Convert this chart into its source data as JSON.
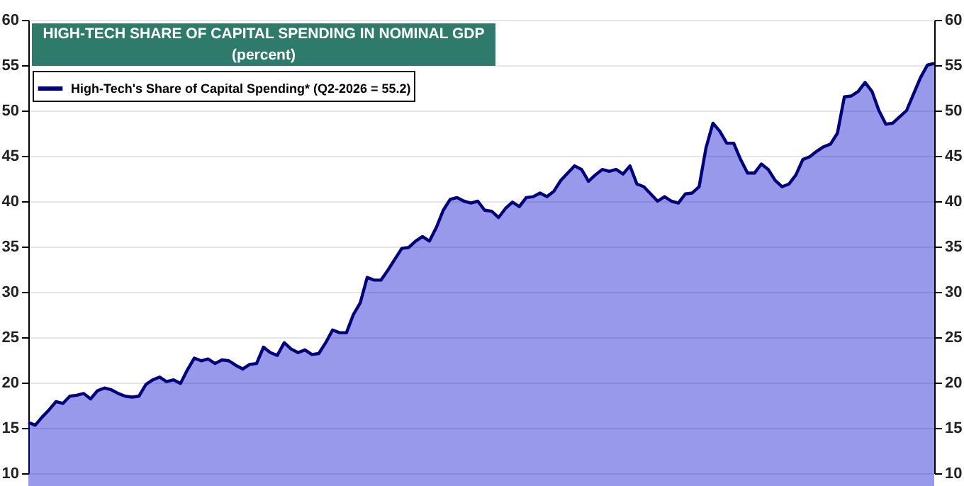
{
  "chart_data": {
    "type": "area",
    "title": "HIGH-TECH SHARE OF CAPITAL SPENDING IN NOMINAL GDP",
    "subtitle": "(percent)",
    "categories": [
      null,
      null,
      null,
      null,
      null,
      null,
      null,
      null,
      null,
      null,
      null,
      null,
      null,
      null,
      null,
      null,
      null,
      null,
      null,
      null,
      null,
      null,
      null,
      null,
      null,
      null,
      null,
      null,
      null,
      null,
      null,
      null,
      null,
      null,
      null,
      null,
      null,
      null,
      null,
      null,
      null,
      null,
      null,
      null,
      null,
      null,
      null,
      null,
      null,
      null,
      null,
      null,
      null,
      null,
      null,
      null,
      null,
      null,
      null,
      null,
      null,
      null,
      null,
      null,
      null,
      null,
      null,
      null,
      null,
      null,
      null,
      null,
      null,
      null,
      null,
      null,
      null,
      null,
      null,
      null,
      null,
      null,
      null,
      null,
      null,
      null,
      null,
      null,
      null,
      null,
      null,
      null,
      null,
      null,
      null,
      null,
      null,
      null,
      null,
      null,
      null,
      null,
      null,
      null,
      null,
      null,
      null,
      null,
      null,
      null,
      null,
      null,
      null,
      null,
      null,
      null,
      null,
      null,
      null,
      null,
      null,
      null,
      null,
      null,
      null,
      null,
      null,
      null,
      null,
      null,
      null,
      null
    ],
    "series": [
      {
        "name": "High-Tech's Share of Capital Spending* (Q2-2026 = 55.2)",
        "color": "#0000cc",
        "values": [
          15.6,
          15.3,
          16.2,
          17.0,
          17.9,
          17.7,
          18.5,
          18.6,
          18.8,
          18.2,
          19.1,
          19.4,
          19.2,
          18.8,
          18.5,
          18.4,
          18.5,
          19.8,
          20.3,
          20.6,
          20.1,
          20.3,
          19.9,
          21.4,
          22.7,
          22.4,
          22.6,
          22.1,
          22.5,
          22.4,
          21.9,
          21.5,
          22.0,
          22.1,
          23.9,
          23.3,
          23.0,
          24.4,
          23.7,
          23.3,
          23.6,
          23.1,
          23.2,
          24.4,
          25.8,
          25.5,
          25.5,
          27.5,
          28.8,
          31.6,
          31.3,
          31.3,
          32.4,
          33.6,
          34.8,
          34.9,
          35.6,
          36.1,
          35.6,
          37.1,
          39.0,
          40.2,
          40.4,
          40.0,
          39.8,
          40.0,
          39.0,
          38.9,
          38.2,
          39.2,
          39.9,
          39.4,
          40.4,
          40.5,
          40.9,
          40.5,
          41.1,
          42.3,
          43.1,
          43.9,
          43.5,
          42.2,
          42.9,
          43.5,
          43.3,
          43.5,
          43.0,
          43.9,
          41.9,
          41.6,
          40.8,
          40.0,
          40.5,
          40.0,
          39.8,
          40.8,
          40.9,
          41.6,
          45.9,
          48.6,
          47.7,
          46.4,
          46.4,
          44.6,
          43.1,
          43.1,
          44.1,
          43.5,
          42.3,
          41.6,
          41.9,
          42.9,
          44.6,
          44.9,
          45.5,
          46.0,
          46.3,
          47.5,
          51.5,
          51.6,
          52.1,
          53.1,
          52.1,
          50.0,
          48.5,
          48.6,
          49.3,
          50.0,
          51.8,
          53.6,
          55.0,
          55.2
        ]
      }
    ],
    "ylim": [
      10,
      60
    ],
    "yticks": [
      10,
      15,
      20,
      25,
      30,
      35,
      40,
      45,
      50,
      55,
      60
    ],
    "y2lim": [
      10,
      60
    ],
    "y2ticks": [
      10,
      15,
      20,
      25,
      30,
      35,
      40,
      45,
      50,
      55,
      60
    ],
    "grid": "y",
    "legend": "top left",
    "tick_labels": "y",
    "line_style": "solid",
    "marker": "none"
  }
}
